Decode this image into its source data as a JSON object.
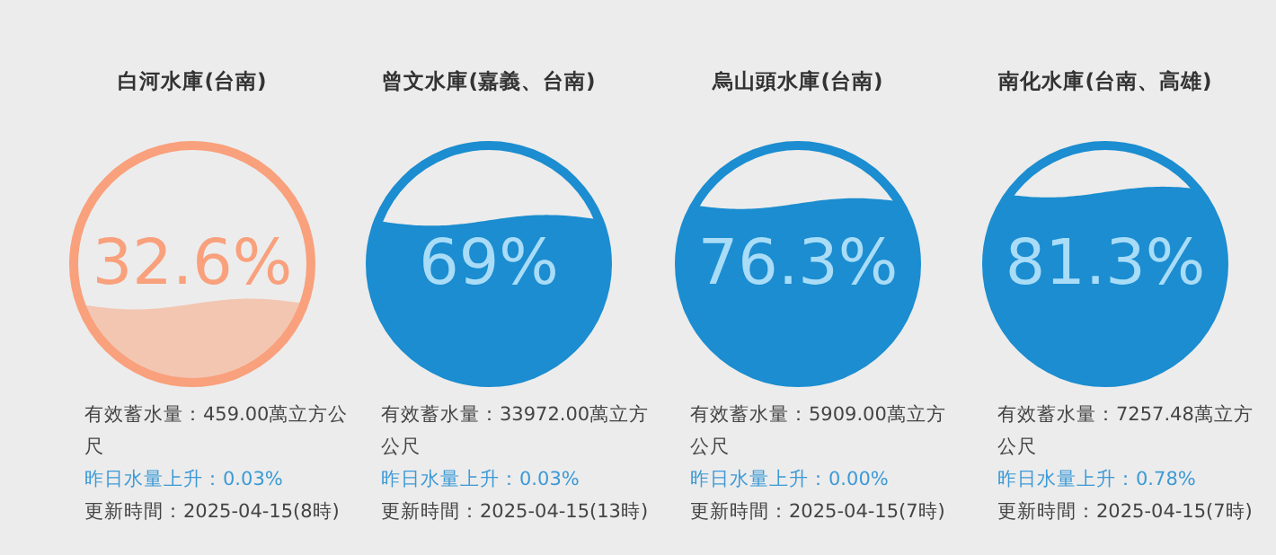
{
  "chart_data": [
    {
      "type": "other",
      "title": "白河水庫(台南)",
      "values": [
        32.6
      ],
      "value_labels": [
        "32.6%"
      ],
      "color": "#f9a07c",
      "colors": [
        "#f3c6b2"
      ],
      "annotations": [
        "有效蓄水量：459.00萬立方公尺",
        "昨日水量上升：0.03%",
        "更新時間：2025-04-15(8時)"
      ]
    },
    {
      "type": "other",
      "title": "曾文水庫(嘉義、台南)",
      "values": [
        69
      ],
      "value_labels": [
        "69%"
      ],
      "color": "#1b8dd0",
      "colors": [
        "#1b8dd0"
      ],
      "annotations": [
        "有效蓄水量：33972.00萬立方公尺",
        "昨日水量上升：0.03%",
        "更新時間：2025-04-15(13時)"
      ]
    },
    {
      "type": "other",
      "title": "烏山頭水庫(台南)",
      "values": [
        76.3
      ],
      "value_labels": [
        "76.3%"
      ],
      "color": "#1b8dd0",
      "colors": [
        "#1b8dd0"
      ],
      "annotations": [
        "有效蓄水量：5909.00萬立方公尺",
        "昨日水量上升：0.00%",
        "更新時間：2025-04-15(7時)"
      ]
    },
    {
      "type": "other",
      "title": "南化水庫(台南、高雄)",
      "values": [
        81.3
      ],
      "value_labels": [
        "81.3%"
      ],
      "color": "#1b8dd0",
      "colors": [
        "#1b8dd0"
      ],
      "annotations": [
        "有效蓄水量：7257.48萬立方公尺",
        "昨日水量上升：0.78%",
        "更新時間：2025-04-15(7時)"
      ]
    }
  ]
}
